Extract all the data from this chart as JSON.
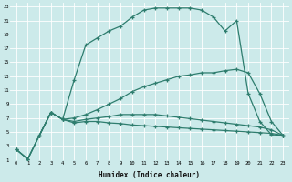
{
  "xlabel": "Humidex (Indice chaleur)",
  "bg_color": "#cceaea",
  "grid_color": "#ffffff",
  "line_color": "#2e7d6e",
  "xlim": [
    -0.5,
    23.5
  ],
  "ylim": [
    1,
    23.5
  ],
  "xticks": [
    0,
    1,
    2,
    3,
    4,
    5,
    6,
    7,
    8,
    9,
    10,
    11,
    12,
    13,
    14,
    15,
    16,
    17,
    18,
    19,
    20,
    21,
    22,
    23
  ],
  "yticks": [
    1,
    3,
    5,
    7,
    9,
    11,
    13,
    15,
    17,
    19,
    21,
    23
  ],
  "line_top_x": [
    2,
    3,
    4,
    5,
    6,
    7,
    8,
    9,
    10,
    11,
    12,
    13,
    14,
    15,
    16,
    17,
    18,
    19,
    20,
    21,
    22,
    23
  ],
  "line_top_y": [
    4.5,
    7.8,
    6.8,
    12.5,
    17.5,
    18.5,
    19.5,
    20.2,
    21.5,
    22.5,
    22.8,
    22.8,
    22.8,
    22.8,
    22.5,
    21.5,
    19.5,
    21.0,
    10.5,
    6.5,
    4.6,
    4.5
  ],
  "line_diag_x": [
    0,
    1,
    2,
    3,
    4,
    5,
    6,
    7,
    8,
    9,
    10,
    11,
    12,
    13,
    14,
    15,
    16,
    17,
    18,
    19,
    20,
    21,
    22,
    23
  ],
  "line_diag_y": [
    2.5,
    1.1,
    4.5,
    7.8,
    6.8,
    7.0,
    7.5,
    8.2,
    9.0,
    9.8,
    10.8,
    11.5,
    12.0,
    12.5,
    13.0,
    13.2,
    13.5,
    13.5,
    13.8,
    14.0,
    13.5,
    10.5,
    6.5,
    4.5
  ],
  "line_mid_x": [
    0,
    1,
    2,
    3,
    4,
    5,
    6,
    7,
    8,
    9,
    10,
    11,
    12,
    13,
    14,
    15,
    16,
    17,
    18,
    19,
    20,
    21,
    22,
    23
  ],
  "line_mid_y": [
    2.5,
    1.1,
    4.5,
    7.8,
    6.8,
    6.5,
    6.8,
    7.0,
    7.2,
    7.5,
    7.5,
    7.5,
    7.5,
    7.3,
    7.1,
    6.9,
    6.7,
    6.5,
    6.3,
    6.1,
    5.9,
    5.7,
    5.3,
    4.5
  ],
  "line_bot_x": [
    0,
    1,
    2,
    3,
    4,
    5,
    6,
    7,
    8,
    9,
    10,
    11,
    12,
    13,
    14,
    15,
    16,
    17,
    18,
    19,
    20,
    21,
    22,
    23
  ],
  "line_bot_y": [
    2.5,
    1.1,
    4.5,
    7.8,
    6.8,
    6.3,
    6.5,
    6.5,
    6.3,
    6.2,
    6.0,
    5.9,
    5.8,
    5.7,
    5.6,
    5.5,
    5.4,
    5.3,
    5.2,
    5.1,
    5.0,
    4.9,
    4.8,
    4.5
  ]
}
